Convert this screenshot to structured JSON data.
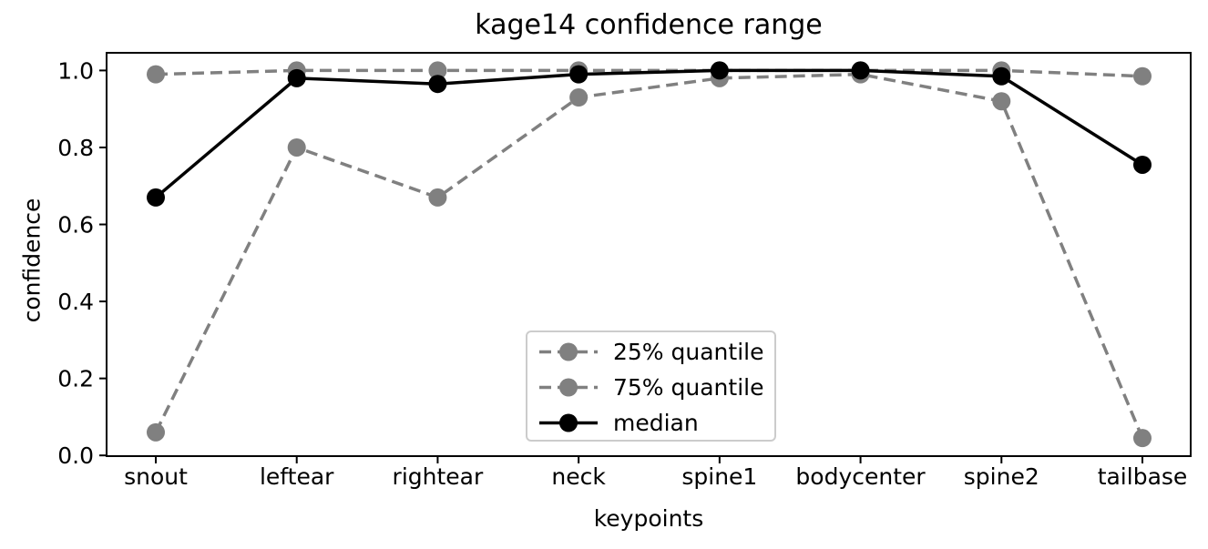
{
  "chart_data": {
    "type": "line",
    "title": "kage14 confidence range",
    "xlabel": "keypoints",
    "ylabel": "confidence",
    "categories": [
      "snout",
      "leftear",
      "rightear",
      "neck",
      "spine1",
      "bodycenter",
      "spine2",
      "tailbase"
    ],
    "y_ticks": [
      "0.0",
      "0.2",
      "0.4",
      "0.6",
      "0.8",
      "1.0"
    ],
    "y_tick_values": [
      0.0,
      0.2,
      0.4,
      0.6,
      0.8,
      1.0
    ],
    "ylim": [
      0.0,
      1.05
    ],
    "grid": false,
    "legend_position": "inside lower-center",
    "series": [
      {
        "name": "25% quantile",
        "color": "#808080",
        "line_style": "dashed",
        "values": [
          0.06,
          0.8,
          0.67,
          0.93,
          0.98,
          0.99,
          0.92,
          0.045
        ]
      },
      {
        "name": "75% quantile",
        "color": "#808080",
        "line_style": "dashed",
        "values": [
          0.99,
          1.0,
          1.0,
          1.0,
          1.0,
          1.0,
          1.0,
          0.985
        ]
      },
      {
        "name": "median",
        "color": "#000000",
        "line_style": "solid",
        "values": [
          0.67,
          0.98,
          0.965,
          0.99,
          1.0,
          1.0,
          0.985,
          0.755
        ]
      }
    ],
    "axis_color": "#000000",
    "background_color": "#ffffff",
    "legend_border_color": "#cccccc"
  }
}
